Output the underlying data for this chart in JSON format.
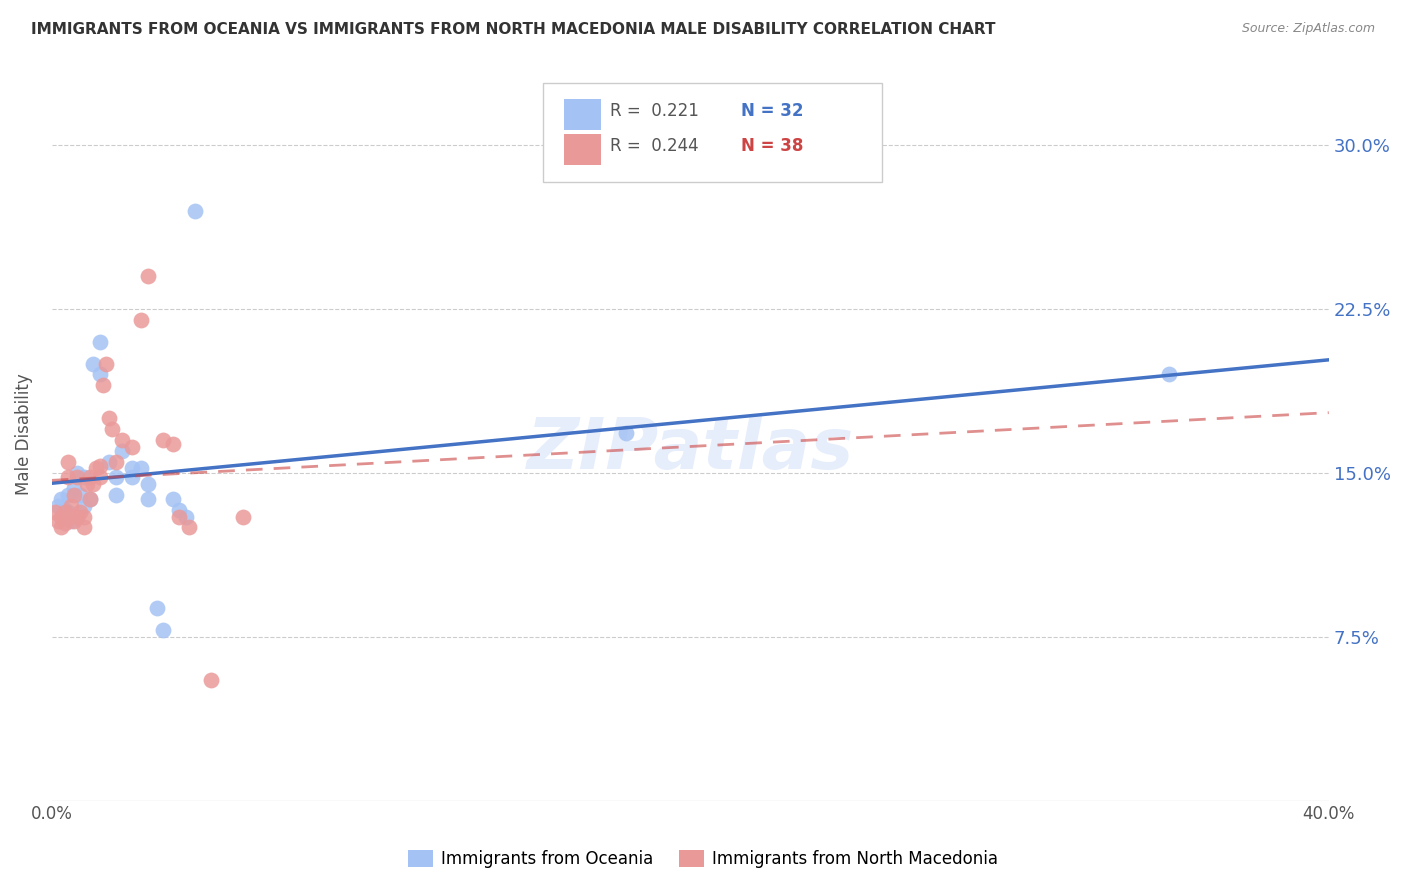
{
  "title": "IMMIGRANTS FROM OCEANIA VS IMMIGRANTS FROM NORTH MACEDONIA MALE DISABILITY CORRELATION CHART",
  "source": "Source: ZipAtlas.com",
  "ylabel": "Male Disability",
  "ytick_labels": [
    "7.5%",
    "15.0%",
    "22.5%",
    "30.0%"
  ],
  "ytick_values": [
    0.075,
    0.15,
    0.225,
    0.3
  ],
  "xtick_values": [
    0.0,
    0.1,
    0.2,
    0.3,
    0.4
  ],
  "xtick_labels": [
    "0.0%",
    "",
    "",
    "",
    "40.0%"
  ],
  "xlim": [
    0.0,
    0.4
  ],
  "ylim": [
    0.0,
    0.335
  ],
  "legend_r1": "R =  0.221",
  "legend_n1": "N = 32",
  "legend_r2": "R =  0.244",
  "legend_n2": "N = 38",
  "color_blue": "#a4c2f4",
  "color_pink": "#ea9999",
  "color_trendline_blue": "#4472c4",
  "color_trendline_pink": "#cc4444",
  "watermark": "ZIPatlas",
  "oceania_x": [
    0.002,
    0.003,
    0.004,
    0.005,
    0.005,
    0.006,
    0.007,
    0.008,
    0.009,
    0.01,
    0.01,
    0.012,
    0.013,
    0.015,
    0.015,
    0.018,
    0.02,
    0.02,
    0.022,
    0.025,
    0.025,
    0.028,
    0.03,
    0.03,
    0.033,
    0.035,
    0.038,
    0.04,
    0.042,
    0.045,
    0.18,
    0.35
  ],
  "oceania_y": [
    0.135,
    0.138,
    0.133,
    0.132,
    0.14,
    0.128,
    0.143,
    0.15,
    0.14,
    0.135,
    0.148,
    0.138,
    0.2,
    0.195,
    0.21,
    0.155,
    0.148,
    0.14,
    0.16,
    0.152,
    0.148,
    0.152,
    0.145,
    0.138,
    0.088,
    0.078,
    0.138,
    0.133,
    0.13,
    0.27,
    0.168,
    0.195
  ],
  "n_macedonia_x": [
    0.001,
    0.002,
    0.003,
    0.003,
    0.004,
    0.004,
    0.005,
    0.005,
    0.006,
    0.007,
    0.007,
    0.008,
    0.008,
    0.009,
    0.01,
    0.01,
    0.011,
    0.012,
    0.012,
    0.013,
    0.014,
    0.015,
    0.015,
    0.016,
    0.017,
    0.018,
    0.019,
    0.02,
    0.022,
    0.025,
    0.028,
    0.03,
    0.035,
    0.038,
    0.04,
    0.043,
    0.05,
    0.06
  ],
  "n_macedonia_y": [
    0.132,
    0.128,
    0.125,
    0.13,
    0.132,
    0.127,
    0.155,
    0.148,
    0.135,
    0.128,
    0.14,
    0.148,
    0.13,
    0.132,
    0.125,
    0.13,
    0.145,
    0.138,
    0.148,
    0.145,
    0.152,
    0.148,
    0.153,
    0.19,
    0.2,
    0.175,
    0.17,
    0.155,
    0.165,
    0.162,
    0.22,
    0.24,
    0.165,
    0.163,
    0.13,
    0.125,
    0.055,
    0.13
  ]
}
